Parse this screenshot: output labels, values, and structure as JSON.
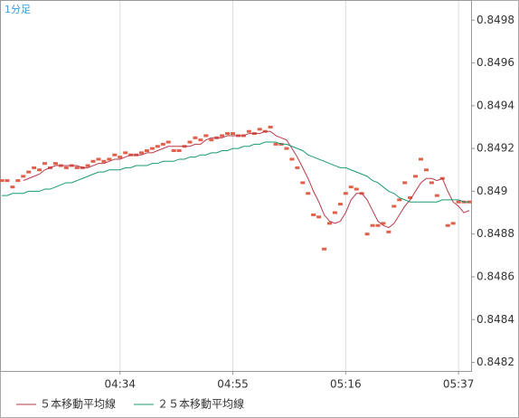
{
  "chart_data": {
    "type": "line",
    "title": "1分足",
    "categories": [
      null,
      null,
      null,
      null,
      null,
      null,
      null,
      null,
      null,
      null,
      null,
      null,
      null,
      null,
      null,
      null,
      null,
      null,
      null,
      null,
      null,
      null,
      "04:34",
      null,
      null,
      null,
      null,
      null,
      null,
      null,
      null,
      null,
      null,
      null,
      null,
      null,
      null,
      null,
      null,
      null,
      null,
      null,
      null,
      "04:55",
      null,
      null,
      null,
      null,
      null,
      null,
      null,
      null,
      null,
      null,
      null,
      null,
      null,
      null,
      null,
      null,
      null,
      null,
      null,
      null,
      "05:16",
      null,
      null,
      null,
      null,
      null,
      null,
      null,
      null,
      null,
      null,
      null,
      null,
      null,
      null,
      null,
      null,
      null,
      null,
      null,
      null,
      "05:37",
      null,
      null
    ],
    "series": [
      {
        "mode": "markers",
        "color": "#e0604a",
        "values": [
          0.84905,
          0.84905,
          0.84902,
          0.84905,
          0.84907,
          0.84909,
          0.84911,
          0.8491,
          0.84913,
          0.84911,
          0.84913,
          0.84912,
          0.84911,
          0.84912,
          0.84911,
          0.84911,
          0.84912,
          0.84914,
          0.84915,
          0.84914,
          0.84915,
          0.84917,
          0.84916,
          0.84918,
          0.84917,
          0.84917,
          0.84918,
          0.84919,
          0.8492,
          0.84921,
          0.84922,
          0.84923,
          0.84919,
          0.84919,
          0.84921,
          0.84923,
          0.84925,
          0.84924,
          0.84926,
          0.84924,
          0.84925,
          0.84926,
          0.84927,
          0.84927,
          0.84926,
          0.84926,
          0.84928,
          0.84927,
          0.84929,
          0.84928,
          0.8493,
          0.84922,
          0.84922,
          0.8492,
          0.84915,
          0.84911,
          0.84904,
          0.84899,
          0.84889,
          0.84888,
          0.84873,
          0.84885,
          0.8489,
          0.84894,
          0.84899,
          0.84902,
          0.84901,
          0.84899,
          0.8488,
          0.84884,
          0.84884,
          0.84885,
          0.84881,
          0.84893,
          0.84896,
          0.84904,
          0.84897,
          0.84907,
          0.84915,
          0.8491,
          0.84904,
          0.84898,
          0.84906,
          0.84884,
          0.84885,
          0.84895,
          0.84895,
          0.84895
        ]
      },
      {
        "name": "５本移動平均線",
        "mode": "line",
        "color": "#b8384a",
        "values": [
          null,
          null,
          null,
          null,
          0.84905,
          0.84906,
          0.84907,
          0.84908,
          0.8491,
          0.84911,
          0.84912,
          0.84912,
          0.84912,
          0.84912,
          0.84912,
          0.84911,
          0.84911,
          0.84912,
          0.84913,
          0.84913,
          0.84914,
          0.84915,
          0.84915,
          0.84916,
          0.84917,
          0.84917,
          0.84917,
          0.84918,
          0.84918,
          0.84919,
          0.8492,
          0.84921,
          0.84921,
          0.84921,
          0.84921,
          0.84921,
          0.84922,
          0.84922,
          0.84924,
          0.84925,
          0.84925,
          0.84925,
          0.84926,
          0.84926,
          0.84926,
          0.84926,
          0.84927,
          0.84927,
          0.84927,
          0.84928,
          0.84928,
          0.84926,
          0.84925,
          0.84924,
          0.8492,
          0.84916,
          0.84911,
          0.84906,
          0.849,
          0.84895,
          0.84889,
          0.84886,
          0.84885,
          0.84886,
          0.8489,
          0.84896,
          0.84899,
          0.84899,
          0.84896,
          0.84891,
          0.84886,
          0.84884,
          0.84883,
          0.84885,
          0.84889,
          0.84893,
          0.84896,
          0.849,
          0.84904,
          0.84906,
          0.84906,
          0.84905,
          0.84906,
          0.849,
          0.84895,
          0.84893,
          0.8489,
          0.84891
        ]
      },
      {
        "name": "２５本移動平均線",
        "mode": "line",
        "color": "#1a9a70",
        "values": [
          0.84898,
          0.84898,
          0.84899,
          0.84899,
          0.84899,
          0.849,
          0.849,
          0.849,
          0.84901,
          0.84901,
          0.84902,
          0.84903,
          0.84904,
          0.84904,
          0.84905,
          0.84906,
          0.84907,
          0.84908,
          0.84909,
          0.84909,
          0.8491,
          0.8491,
          0.8491,
          0.84911,
          0.84911,
          0.84912,
          0.84912,
          0.84912,
          0.84913,
          0.84913,
          0.84914,
          0.84914,
          0.84914,
          0.84915,
          0.84915,
          0.84916,
          0.84916,
          0.84917,
          0.84917,
          0.84918,
          0.84918,
          0.84919,
          0.84919,
          0.8492,
          0.8492,
          0.84921,
          0.84921,
          0.84922,
          0.84922,
          0.84923,
          0.84923,
          0.84923,
          0.84922,
          0.84922,
          0.84921,
          0.8492,
          0.84919,
          0.84917,
          0.84916,
          0.84915,
          0.84914,
          0.84913,
          0.84912,
          0.84911,
          0.84911,
          0.8491,
          0.84909,
          0.84908,
          0.84907,
          0.84905,
          0.84904,
          0.84902,
          0.849,
          0.84899,
          0.84897,
          0.84896,
          0.84895,
          0.84895,
          0.84895,
          0.84895,
          0.84895,
          0.84895,
          0.84896,
          0.84896,
          0.84896,
          0.84896,
          0.84895,
          0.84895
        ]
      }
    ],
    "ylim": [
      0.84816,
      0.84989
    ],
    "yticks": [
      0.8482,
      0.8484,
      0.8486,
      0.8488,
      0.849,
      0.8492,
      0.8494,
      0.8496,
      0.8498
    ],
    "y_axis_side": "right",
    "grid": "x"
  }
}
